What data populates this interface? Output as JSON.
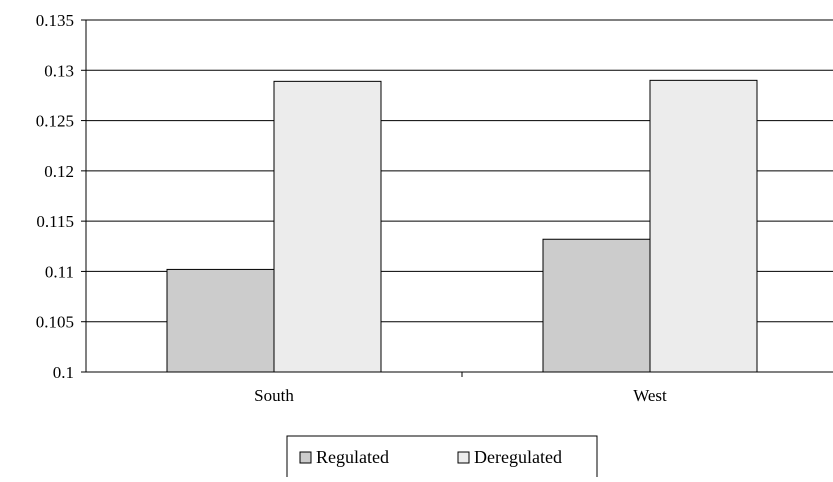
{
  "chart_data": {
    "type": "bar",
    "categories": [
      "South",
      "West"
    ],
    "series": [
      {
        "name": "Regulated",
        "values": [
          0.1102,
          0.1132
        ],
        "color": "#cccccc"
      },
      {
        "name": "Deregulated",
        "values": [
          0.1289,
          0.129
        ],
        "color": "#ececec"
      }
    ],
    "ylim": [
      0.1,
      0.135
    ],
    "yticks": [
      "0.1",
      "0.105",
      "0.11",
      "0.115",
      "0.12",
      "0.125",
      "0.13",
      "0.135"
    ],
    "grid": true,
    "legend_position": "bottom-center",
    "title": "",
    "xlabel": "",
    "ylabel": ""
  }
}
